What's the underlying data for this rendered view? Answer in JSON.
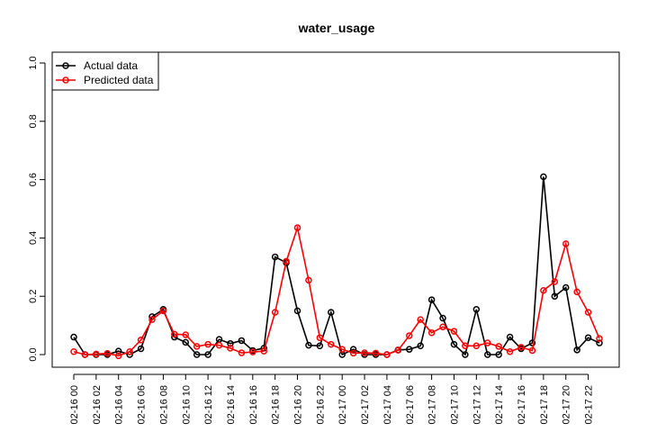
{
  "chart_data": {
    "type": "line",
    "title": "water_usage",
    "xlabel": "",
    "ylabel": "",
    "ylim": [
      0,
      1
    ],
    "yticks": [
      0.0,
      0.2,
      0.4,
      0.6,
      0.8,
      1.0
    ],
    "ytick_labels": [
      "0.0",
      "0.2",
      "0.4",
      "0.6",
      "0.8",
      "1.0"
    ],
    "xtick_labels": [
      "02-16 00",
      "02-16 02",
      "02-16 04",
      "02-16 06",
      "02-16 08",
      "02-16 10",
      "02-16 12",
      "02-16 14",
      "02-16 16",
      "02-16 18",
      "02-16 20",
      "02-16 22",
      "02-17 00",
      "02-17 02",
      "02-17 04",
      "02-17 06",
      "02-17 08",
      "02-17 10",
      "02-17 12",
      "02-17 14",
      "02-17 16",
      "02-17 18",
      "02-17 20",
      "02-17 22"
    ],
    "x_unit": "hour",
    "grid": false,
    "legend_position": "top-left",
    "series": [
      {
        "name": "Actual data",
        "color": "#000000",
        "values": [
          0.06,
          0.0,
          0.0,
          0.0,
          0.012,
          0.0,
          0.02,
          0.13,
          0.155,
          0.06,
          0.042,
          0.0,
          0.0,
          0.052,
          0.038,
          0.048,
          0.014,
          0.022,
          0.335,
          0.315,
          0.15,
          0.032,
          0.03,
          0.145,
          0.0,
          0.018,
          0.0,
          0.0,
          0.0,
          0.016,
          0.018,
          0.03,
          0.188,
          0.125,
          0.035,
          0.0,
          0.155,
          0.0,
          0.0,
          0.06,
          0.02,
          0.04,
          0.61,
          0.2,
          0.23,
          0.016,
          0.058,
          0.04
        ]
      },
      {
        "name": "Predicted data",
        "color": "#ff0000",
        "values": [
          0.01,
          0.0,
          0.002,
          0.004,
          -0.004,
          0.01,
          0.05,
          0.12,
          0.15,
          0.07,
          0.068,
          0.028,
          0.035,
          0.032,
          0.022,
          0.006,
          0.009,
          0.012,
          0.145,
          0.32,
          0.435,
          0.255,
          0.058,
          0.035,
          0.018,
          0.005,
          0.006,
          0.005,
          0.0,
          0.015,
          0.065,
          0.12,
          0.075,
          0.095,
          0.08,
          0.03,
          0.03,
          0.04,
          0.028,
          0.01,
          0.025,
          0.014,
          0.22,
          0.25,
          0.38,
          0.215,
          0.145,
          0.055
        ]
      }
    ]
  }
}
